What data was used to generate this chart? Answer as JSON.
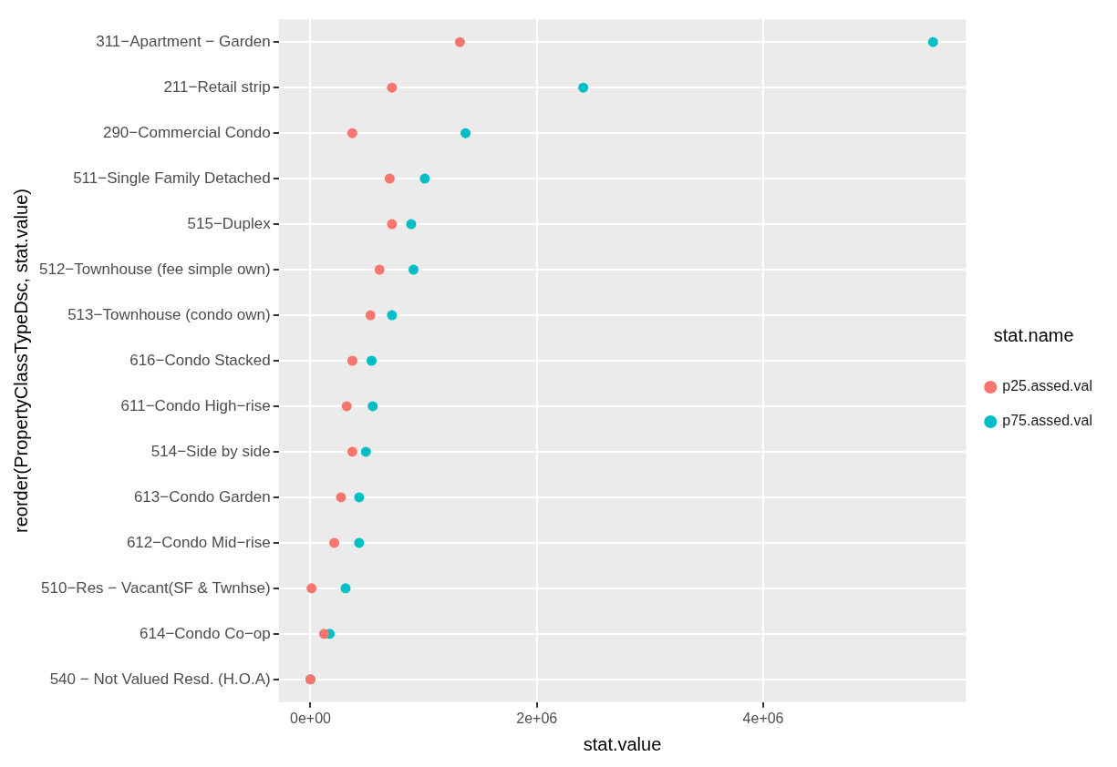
{
  "chart_data": {
    "type": "scatter",
    "orientation": "horizontal",
    "xlabel": "stat.value",
    "ylabel": "reorder(PropertyClassTypeDsc, stat.value)",
    "legend_title": "stat.name",
    "legend": "right",
    "grid": true,
    "marker": "circle",
    "categories": [
      "311−Apartment − Garden",
      "211−Retail strip",
      "290−Commercial Condo",
      "511−Single Family Detached",
      "515−Duplex",
      "512−Townhouse (fee simple own)",
      "513−Townhouse (condo own)",
      "616−Condo Stacked",
      "611−Condo High−rise",
      "514−Side by side",
      "613−Condo Garden",
      "612−Condo Mid−rise",
      "510−Res − Vacant(SF & Twnhse)",
      "614−Condo Co−op",
      "540 − Not Valued Resd. (H.O.A)"
    ],
    "xlim": [
      -280000,
      5790000
    ],
    "xticks": [
      {
        "value": 0,
        "label": "0e+00"
      },
      {
        "value": 2000000,
        "label": "2e+06"
      },
      {
        "value": 4000000,
        "label": "4e+06"
      }
    ],
    "series": [
      {
        "name": "p25.assed.val",
        "color": "#f8766d",
        "values": [
          1320000,
          720000,
          370000,
          700000,
          720000,
          610000,
          530000,
          370000,
          320000,
          370000,
          270000,
          210000,
          10000,
          120000,
          0
        ]
      },
      {
        "name": "p75.assed.val",
        "color": "#00bfc4",
        "values": [
          5500000,
          2410000,
          1370000,
          1010000,
          890000,
          910000,
          720000,
          540000,
          550000,
          490000,
          430000,
          430000,
          310000,
          170000,
          0
        ]
      }
    ]
  }
}
